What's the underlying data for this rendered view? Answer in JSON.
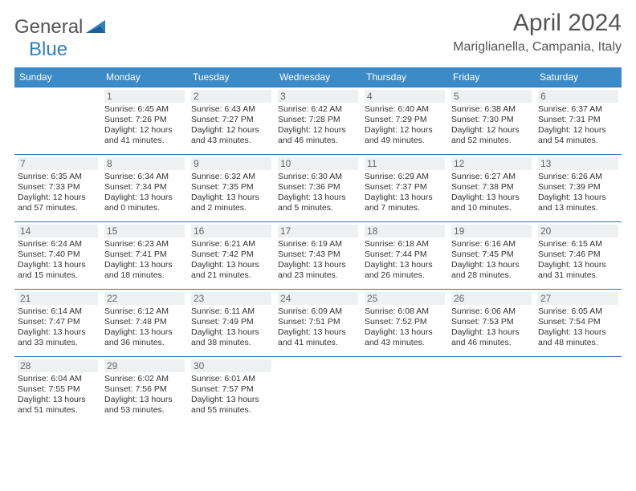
{
  "brand": {
    "name1": "General",
    "name2": "Blue"
  },
  "title": "April 2024",
  "location": "Mariglianella, Campania, Italy",
  "colors": {
    "header_bg": "#3b8bc9",
    "header_fg": "#ffffff",
    "rule": "#3b6fa0",
    "daybg": "#eef0f1"
  },
  "weekdays": [
    "Sunday",
    "Monday",
    "Tuesday",
    "Wednesday",
    "Thursday",
    "Friday",
    "Saturday"
  ],
  "weeks": [
    [
      null,
      {
        "n": "1",
        "sr": "6:45 AM",
        "ss": "7:26 PM",
        "dl": "12 hours and 41 minutes."
      },
      {
        "n": "2",
        "sr": "6:43 AM",
        "ss": "7:27 PM",
        "dl": "12 hours and 43 minutes."
      },
      {
        "n": "3",
        "sr": "6:42 AM",
        "ss": "7:28 PM",
        "dl": "12 hours and 46 minutes."
      },
      {
        "n": "4",
        "sr": "6:40 AM",
        "ss": "7:29 PM",
        "dl": "12 hours and 49 minutes."
      },
      {
        "n": "5",
        "sr": "6:38 AM",
        "ss": "7:30 PM",
        "dl": "12 hours and 52 minutes."
      },
      {
        "n": "6",
        "sr": "6:37 AM",
        "ss": "7:31 PM",
        "dl": "12 hours and 54 minutes."
      }
    ],
    [
      {
        "n": "7",
        "sr": "6:35 AM",
        "ss": "7:33 PM",
        "dl": "12 hours and 57 minutes."
      },
      {
        "n": "8",
        "sr": "6:34 AM",
        "ss": "7:34 PM",
        "dl": "13 hours and 0 minutes."
      },
      {
        "n": "9",
        "sr": "6:32 AM",
        "ss": "7:35 PM",
        "dl": "13 hours and 2 minutes."
      },
      {
        "n": "10",
        "sr": "6:30 AM",
        "ss": "7:36 PM",
        "dl": "13 hours and 5 minutes."
      },
      {
        "n": "11",
        "sr": "6:29 AM",
        "ss": "7:37 PM",
        "dl": "13 hours and 7 minutes."
      },
      {
        "n": "12",
        "sr": "6:27 AM",
        "ss": "7:38 PM",
        "dl": "13 hours and 10 minutes."
      },
      {
        "n": "13",
        "sr": "6:26 AM",
        "ss": "7:39 PM",
        "dl": "13 hours and 13 minutes."
      }
    ],
    [
      {
        "n": "14",
        "sr": "6:24 AM",
        "ss": "7:40 PM",
        "dl": "13 hours and 15 minutes."
      },
      {
        "n": "15",
        "sr": "6:23 AM",
        "ss": "7:41 PM",
        "dl": "13 hours and 18 minutes."
      },
      {
        "n": "16",
        "sr": "6:21 AM",
        "ss": "7:42 PM",
        "dl": "13 hours and 21 minutes."
      },
      {
        "n": "17",
        "sr": "6:19 AM",
        "ss": "7:43 PM",
        "dl": "13 hours and 23 minutes."
      },
      {
        "n": "18",
        "sr": "6:18 AM",
        "ss": "7:44 PM",
        "dl": "13 hours and 26 minutes."
      },
      {
        "n": "19",
        "sr": "6:16 AM",
        "ss": "7:45 PM",
        "dl": "13 hours and 28 minutes."
      },
      {
        "n": "20",
        "sr": "6:15 AM",
        "ss": "7:46 PM",
        "dl": "13 hours and 31 minutes."
      }
    ],
    [
      {
        "n": "21",
        "sr": "6:14 AM",
        "ss": "7:47 PM",
        "dl": "13 hours and 33 minutes."
      },
      {
        "n": "22",
        "sr": "6:12 AM",
        "ss": "7:48 PM",
        "dl": "13 hours and 36 minutes."
      },
      {
        "n": "23",
        "sr": "6:11 AM",
        "ss": "7:49 PM",
        "dl": "13 hours and 38 minutes."
      },
      {
        "n": "24",
        "sr": "6:09 AM",
        "ss": "7:51 PM",
        "dl": "13 hours and 41 minutes."
      },
      {
        "n": "25",
        "sr": "6:08 AM",
        "ss": "7:52 PM",
        "dl": "13 hours and 43 minutes."
      },
      {
        "n": "26",
        "sr": "6:06 AM",
        "ss": "7:53 PM",
        "dl": "13 hours and 46 minutes."
      },
      {
        "n": "27",
        "sr": "6:05 AM",
        "ss": "7:54 PM",
        "dl": "13 hours and 48 minutes."
      }
    ],
    [
      {
        "n": "28",
        "sr": "6:04 AM",
        "ss": "7:55 PM",
        "dl": "13 hours and 51 minutes."
      },
      {
        "n": "29",
        "sr": "6:02 AM",
        "ss": "7:56 PM",
        "dl": "13 hours and 53 minutes."
      },
      {
        "n": "30",
        "sr": "6:01 AM",
        "ss": "7:57 PM",
        "dl": "13 hours and 55 minutes."
      },
      null,
      null,
      null,
      null
    ]
  ],
  "labels": {
    "sunrise": "Sunrise:",
    "sunset": "Sunset:",
    "daylight": "Daylight:"
  }
}
